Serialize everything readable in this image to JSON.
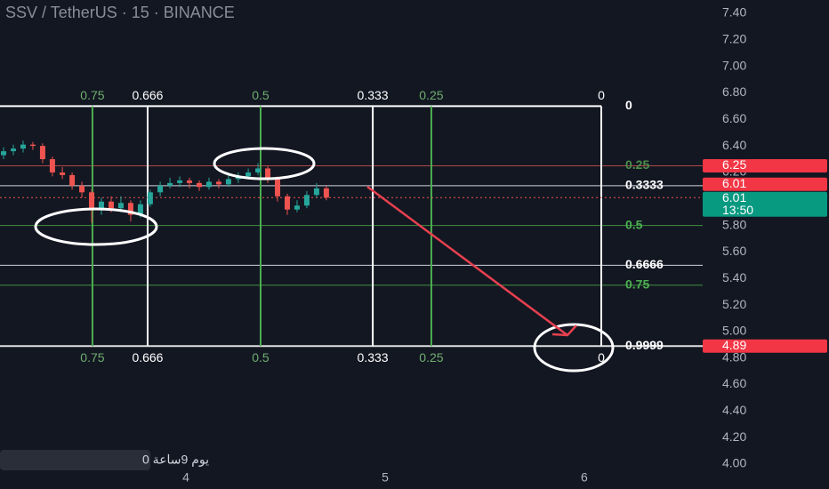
{
  "chart_data": {
    "type": "candlestick",
    "title": "SSV / TetherUS · 15 · BINANCE",
    "xlim": [
      3.067,
      6.594
    ],
    "xticks": [
      4,
      5,
      6
    ],
    "ylim": [
      4.0,
      7.4
    ],
    "yticks": [
      {
        "value": 4.0,
        "label": "4.00"
      },
      {
        "value": 4.2,
        "label": "4.20"
      },
      {
        "value": 4.4,
        "label": "4.40"
      },
      {
        "value": 4.6,
        "label": "4.60"
      },
      {
        "value": 4.8,
        "label": "4.80"
      },
      {
        "value": 5.0,
        "label": "5.00"
      },
      {
        "value": 5.2,
        "label": "5.20"
      },
      {
        "value": 5.4,
        "label": "5.40"
      },
      {
        "value": 5.6,
        "label": "5.60"
      },
      {
        "value": 5.8,
        "label": "5.80"
      },
      {
        "value": 6.0,
        "label": "6.00"
      },
      {
        "value": 6.2,
        "label": "6.20"
      },
      {
        "value": 6.4,
        "label": "6.40"
      },
      {
        "value": 6.6,
        "label": "6.60"
      },
      {
        "value": 6.8,
        "label": "6.80"
      },
      {
        "value": 7.0,
        "label": "7.00"
      },
      {
        "value": 7.2,
        "label": "7.20"
      },
      {
        "value": 7.4,
        "label": "7.40"
      }
    ],
    "up_color": "#26a69a",
    "down_color": "#ef5350",
    "candles": [
      {
        "x": 3.085,
        "open": 6.33,
        "high": 6.39,
        "low": 6.3,
        "close": 6.36
      },
      {
        "x": 3.134,
        "open": 6.36,
        "high": 6.41,
        "low": 6.33,
        "close": 6.38
      },
      {
        "x": 3.183,
        "open": 6.38,
        "high": 6.44,
        "low": 6.35,
        "close": 6.41
      },
      {
        "x": 3.232,
        "open": 6.41,
        "high": 6.43,
        "low": 6.37,
        "close": 6.4
      },
      {
        "x": 3.281,
        "open": 6.4,
        "high": 6.42,
        "low": 6.27,
        "close": 6.3
      },
      {
        "x": 3.33,
        "open": 6.3,
        "high": 6.32,
        "low": 6.17,
        "close": 6.2
      },
      {
        "x": 3.38,
        "open": 6.2,
        "high": 6.24,
        "low": 6.15,
        "close": 6.18
      },
      {
        "x": 3.429,
        "open": 6.18,
        "high": 6.2,
        "low": 6.07,
        "close": 6.1
      },
      {
        "x": 3.478,
        "open": 6.1,
        "high": 6.13,
        "low": 6.01,
        "close": 6.05
      },
      {
        "x": 3.527,
        "open": 6.05,
        "high": 6.07,
        "low": 5.82,
        "close": 5.92
      },
      {
        "x": 3.576,
        "open": 5.92,
        "high": 6.01,
        "low": 5.88,
        "close": 5.98
      },
      {
        "x": 3.625,
        "open": 5.98,
        "high": 6.02,
        "low": 5.9,
        "close": 5.93
      },
      {
        "x": 3.674,
        "open": 5.93,
        "high": 6.02,
        "low": 5.9,
        "close": 5.97
      },
      {
        "x": 3.723,
        "open": 5.97,
        "high": 5.99,
        "low": 5.83,
        "close": 5.88
      },
      {
        "x": 3.772,
        "open": 5.88,
        "high": 5.99,
        "low": 5.86,
        "close": 5.96
      },
      {
        "x": 3.821,
        "open": 5.96,
        "high": 6.07,
        "low": 5.94,
        "close": 6.05
      },
      {
        "x": 3.871,
        "open": 6.05,
        "high": 6.13,
        "low": 6.02,
        "close": 6.1
      },
      {
        "x": 3.92,
        "open": 6.1,
        "high": 6.16,
        "low": 6.08,
        "close": 6.12
      },
      {
        "x": 3.969,
        "open": 6.12,
        "high": 6.17,
        "low": 6.09,
        "close": 6.14
      },
      {
        "x": 4.018,
        "open": 6.14,
        "high": 6.16,
        "low": 6.08,
        "close": 6.12
      },
      {
        "x": 4.067,
        "open": 6.12,
        "high": 6.14,
        "low": 6.06,
        "close": 6.09
      },
      {
        "x": 4.116,
        "open": 6.09,
        "high": 6.16,
        "low": 6.07,
        "close": 6.13
      },
      {
        "x": 4.165,
        "open": 6.13,
        "high": 6.15,
        "low": 6.08,
        "close": 6.11
      },
      {
        "x": 4.214,
        "open": 6.11,
        "high": 6.18,
        "low": 6.09,
        "close": 6.15
      },
      {
        "x": 4.263,
        "open": 6.15,
        "high": 6.2,
        "low": 6.12,
        "close": 6.17
      },
      {
        "x": 4.313,
        "open": 6.17,
        "high": 6.23,
        "low": 6.15,
        "close": 6.2
      },
      {
        "x": 4.362,
        "open": 6.2,
        "high": 6.27,
        "low": 6.18,
        "close": 6.23
      },
      {
        "x": 4.411,
        "open": 6.23,
        "high": 6.25,
        "low": 6.12,
        "close": 6.15
      },
      {
        "x": 4.46,
        "open": 6.15,
        "high": 6.17,
        "low": 5.98,
        "close": 6.02
      },
      {
        "x": 4.509,
        "open": 6.02,
        "high": 6.04,
        "low": 5.88,
        "close": 5.92
      },
      {
        "x": 4.558,
        "open": 5.92,
        "high": 5.99,
        "low": 5.9,
        "close": 5.95
      },
      {
        "x": 4.607,
        "open": 5.95,
        "high": 6.06,
        "low": 5.93,
        "close": 6.03
      },
      {
        "x": 4.656,
        "open": 6.03,
        "high": 6.12,
        "low": 6.01,
        "close": 6.08
      },
      {
        "x": 4.705,
        "open": 6.08,
        "high": 6.1,
        "low": 5.99,
        "close": 6.01
      }
    ],
    "fib_price_levels": [
      {
        "level": "0",
        "price": 6.7,
        "color": "#ffffff",
        "label_color": "#ffffff"
      },
      {
        "level": "0.25",
        "price": 6.25,
        "color": "#b24a4a",
        "label_color": "#4c8f4c"
      },
      {
        "level": "0.3333",
        "price": 6.1,
        "color": "#d1d4dc",
        "label_color": "#ffffff"
      },
      {
        "level": "0.5",
        "price": 5.8,
        "color": "#3f8f3f",
        "label_color": "#4caf50"
      },
      {
        "level": "0.6666",
        "price": 5.5,
        "color": "#d1d4dc",
        "label_color": "#ffffff"
      },
      {
        "level": "0.75",
        "price": 5.35,
        "color": "#3f8f3f",
        "label_color": "#4caf50"
      },
      {
        "level": "0.9999",
        "price": 4.89,
        "color": "#e0e0e0",
        "label_color": "#ffffff"
      }
    ],
    "fib_time_levels": [
      {
        "level": "0.75",
        "x": 3.531,
        "color": "#4caf50"
      },
      {
        "level": "0.666",
        "x": 3.808,
        "color": "#ffffff"
      },
      {
        "level": "0.5",
        "x": 4.375,
        "color": "#4caf50"
      },
      {
        "level": "0.333",
        "x": 4.938,
        "color": "#ffffff"
      },
      {
        "level": "0.25",
        "x": 5.232,
        "color": "#4caf50"
      },
      {
        "level": "0",
        "x": 6.085,
        "color": "#ffffff"
      }
    ],
    "price_tags": [
      {
        "value": 6.25,
        "label": "6.25",
        "color": "#f23645"
      },
      {
        "value": 6.01,
        "label": "6.01",
        "color": "#f23645",
        "countdown": null
      },
      {
        "value": 6.01,
        "label": "6.01",
        "color": "#089981",
        "countdown": "13:50"
      },
      {
        "value": 4.89,
        "label": "4.89",
        "color": "#f23645",
        "countdown": null
      }
    ],
    "note": "يوم 9ساعة 0"
  }
}
